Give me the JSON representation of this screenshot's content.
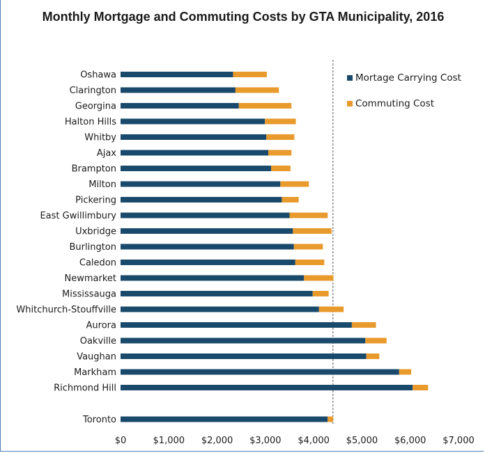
{
  "chart_data": {
    "type": "bar",
    "orientation": "horizontal",
    "stacked": true,
    "title": "Monthly Mortgage and Commuting Costs by GTA Municipality, 2016",
    "categories": [
      "Oshawa",
      "Clarington",
      "Georgina",
      "Halton Hills",
      "Whitby",
      "Ajax",
      "Brampton",
      "Milton",
      "Pickering",
      "East Gwillimbury",
      "Uxbridge",
      "Burlington",
      "Caledon",
      "Newmarket",
      "Mississauga",
      "Whitchurch-Stouffville",
      "Aurora",
      "Oakville",
      "Vaughan",
      "Markham",
      "Richmond Hill",
      "Toronto"
    ],
    "series": [
      {
        "name": "Mortage Carrying Cost",
        "color": "#1a4a6b",
        "values": [
          2330,
          2380,
          2450,
          2990,
          3020,
          3060,
          3120,
          3310,
          3340,
          3500,
          3570,
          3590,
          3620,
          3800,
          3980,
          4110,
          4790,
          5070,
          5090,
          5770,
          6050,
          4290
        ]
      },
      {
        "name": "Commuting Cost",
        "color": "#e99a2c",
        "values": [
          700,
          900,
          1090,
          640,
          580,
          480,
          400,
          590,
          350,
          790,
          800,
          600,
          600,
          610,
          330,
          510,
          500,
          440,
          270,
          250,
          320,
          110
        ]
      }
    ],
    "xlim": [
      0,
      7000
    ],
    "x_ticks": [
      "$0",
      "$1,000",
      "$2,000",
      "$3,000",
      "$4,000",
      "$5,000",
      "$6,000",
      "$7,000"
    ],
    "reference_line_value": 4400,
    "reference_line_style": "dashed",
    "legend_position": "top-right",
    "grid": false
  }
}
